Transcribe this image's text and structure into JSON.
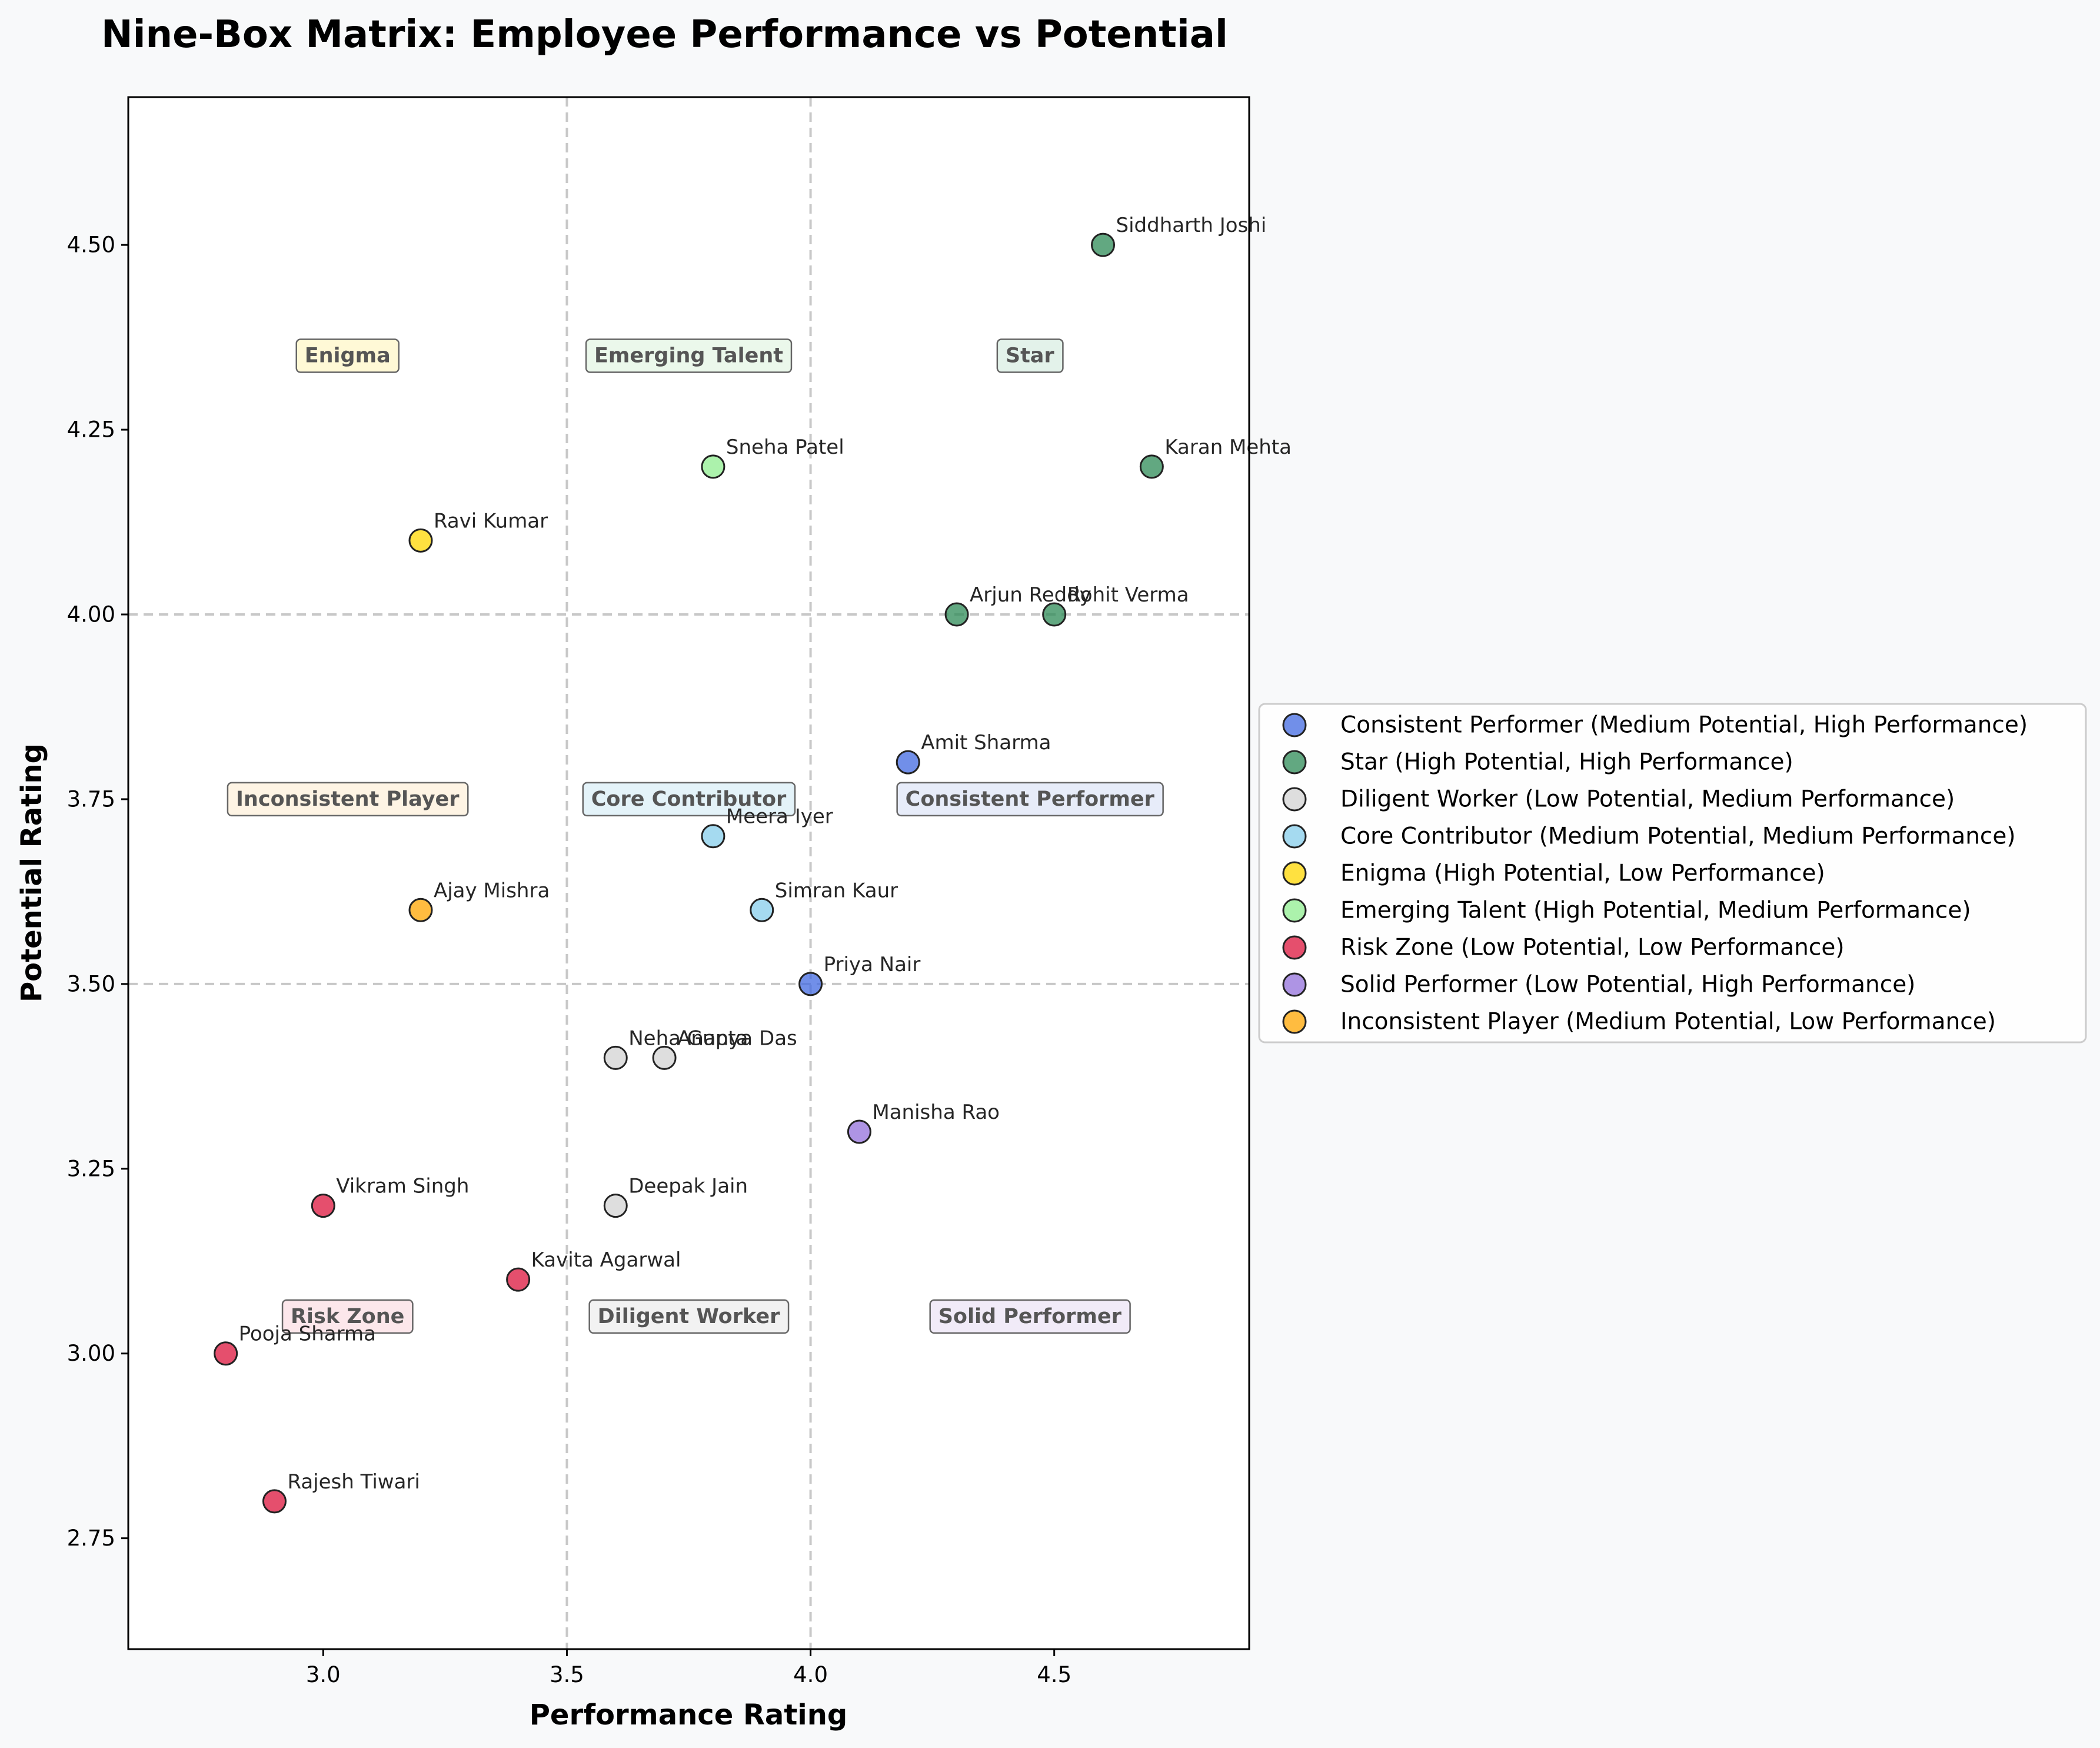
{
  "chart_data": {
    "type": "scatter",
    "title": "Nine-Box Matrix: Employee Performance vs Potential",
    "xlabel": "Performance Rating",
    "ylabel": "Potential Rating",
    "xlim": [
      2.6,
      4.9
    ],
    "ylim": [
      2.6,
      4.7
    ],
    "xticks": [
      3.0,
      3.5,
      4.0,
      4.5
    ],
    "xtick_labels": [
      "3.0",
      "3.5",
      "4.0",
      "4.5"
    ],
    "yticks": [
      2.75,
      3.0,
      3.25,
      3.5,
      3.75,
      4.0,
      4.25,
      4.5
    ],
    "ytick_labels": [
      "2.75",
      "3.00",
      "3.25",
      "3.50",
      "3.75",
      "4.00",
      "4.25",
      "4.50"
    ],
    "divider_x": [
      3.5,
      4.0
    ],
    "divider_y": [
      3.5,
      4.0
    ],
    "legend_position": "right, outside plot",
    "zones": [
      {
        "label": "Enigma",
        "x": 3.05,
        "y": 4.35,
        "color": "#fff7c4"
      },
      {
        "label": "Emerging Talent",
        "x": 3.75,
        "y": 4.35,
        "color": "#e2f5e2"
      },
      {
        "label": "Star",
        "x": 4.45,
        "y": 4.35,
        "color": "#d7ece1"
      },
      {
        "label": "Inconsistent Player",
        "x": 3.05,
        "y": 3.75,
        "color": "#fdf0d8"
      },
      {
        "label": "Core Contributor",
        "x": 3.75,
        "y": 3.75,
        "color": "#d9eef7"
      },
      {
        "label": "Consistent Performer",
        "x": 4.45,
        "y": 3.75,
        "color": "#dde4f7"
      },
      {
        "label": "Risk Zone",
        "x": 3.05,
        "y": 3.05,
        "color": "#fbdde2"
      },
      {
        "label": "Diligent Worker",
        "x": 3.75,
        "y": 3.05,
        "color": "#ececec"
      },
      {
        "label": "Solid Performer",
        "x": 4.45,
        "y": 3.05,
        "color": "#ebe3f5"
      }
    ],
    "series": [
      {
        "name": "Consistent Performer (Medium Potential, High Performance)",
        "color": "#4169e1",
        "points": [
          {
            "label": "Amit Sharma",
            "x": 4.2,
            "y": 3.8
          },
          {
            "label": "Priya Nair",
            "x": 4.0,
            "y": 3.5
          }
        ]
      },
      {
        "name": "Star (High Potential, High Performance)",
        "color": "#2e8b57",
        "points": [
          {
            "label": "Siddharth Joshi",
            "x": 4.6,
            "y": 4.5
          },
          {
            "label": "Karan Mehta",
            "x": 4.7,
            "y": 4.2
          },
          {
            "label": "Arjun Reddy",
            "x": 4.3,
            "y": 4.0
          },
          {
            "label": "Rohit Verma",
            "x": 4.5,
            "y": 4.0
          }
        ]
      },
      {
        "name": "Diligent Worker (Low Potential, Medium Performance)",
        "color": "#d3d3d3",
        "points": [
          {
            "label": "Neha Gupta",
            "x": 3.6,
            "y": 3.4
          },
          {
            "label": "Ananya Das",
            "x": 3.7,
            "y": 3.4
          },
          {
            "label": "Deepak Jain",
            "x": 3.6,
            "y": 3.2
          }
        ]
      },
      {
        "name": "Core Contributor (Medium Potential, Medium Performance)",
        "color": "#87ceeb",
        "points": [
          {
            "label": "Meera Iyer",
            "x": 3.8,
            "y": 3.7
          },
          {
            "label": "Simran Kaur",
            "x": 3.9,
            "y": 3.6
          }
        ]
      },
      {
        "name": "Enigma (High Potential, Low Performance)",
        "color": "#ffd700",
        "points": [
          {
            "label": "Ravi Kumar",
            "x": 3.2,
            "y": 4.1
          }
        ]
      },
      {
        "name": "Emerging Talent (High Potential, Medium Performance)",
        "color": "#90ee90",
        "points": [
          {
            "label": "Sneha Patel",
            "x": 3.8,
            "y": 4.2
          }
        ]
      },
      {
        "name": "Risk Zone (Low Potential, Low Performance)",
        "color": "#dc143c",
        "points": [
          {
            "label": "Vikram Singh",
            "x": 3.0,
            "y": 3.2
          },
          {
            "label": "Kavita Agarwal",
            "x": 3.4,
            "y": 3.1
          },
          {
            "label": "Pooja Sharma",
            "x": 2.8,
            "y": 3.0
          },
          {
            "label": "Rajesh Tiwari",
            "x": 2.9,
            "y": 2.8
          }
        ]
      },
      {
        "name": "Solid Performer (Low Potential, High Performance)",
        "color": "#9370db",
        "points": [
          {
            "label": "Manisha Rao",
            "x": 4.1,
            "y": 3.3
          }
        ]
      },
      {
        "name": "Inconsistent Player (Medium Potential, Low Performance)",
        "color": "#ffa500",
        "points": [
          {
            "label": "Ajay Mishra",
            "x": 3.2,
            "y": 3.6
          }
        ]
      }
    ]
  }
}
